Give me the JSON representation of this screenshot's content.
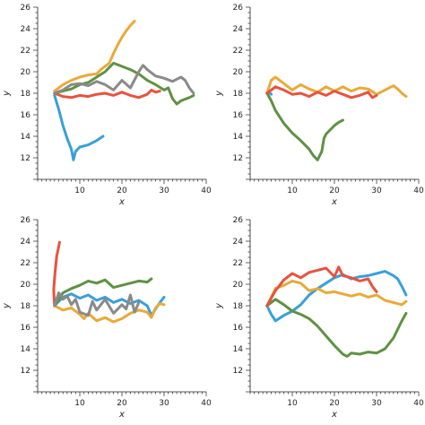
{
  "palette": {
    "blue": "#3a9fd8",
    "orange": "#e8aa38",
    "green": "#5f9144",
    "red": "#e8533f",
    "gray": "#8a8a8a"
  },
  "chart_data": [
    {
      "type": "line",
      "xlabel": "x",
      "ylabel": "y",
      "xlim": [
        0,
        40
      ],
      "ylim": [
        10,
        26
      ],
      "xticks": [
        10,
        20,
        30,
        40
      ],
      "yticks": [
        12,
        14,
        16,
        18,
        20,
        22,
        24,
        26
      ],
      "series": [
        {
          "color": "#3a9fd8",
          "x": [
            4,
            5,
            6,
            7,
            8,
            8.5,
            9,
            10,
            12,
            14,
            15.5
          ],
          "y": [
            17.8,
            16.5,
            15,
            13.8,
            12.8,
            11.8,
            12.6,
            13,
            13.2,
            13.6,
            14
          ]
        },
        {
          "color": "#e8aa38",
          "x": [
            4,
            6,
            8,
            10,
            12,
            14,
            15,
            17,
            18,
            19,
            20,
            21,
            22,
            23
          ],
          "y": [
            18.2,
            18.8,
            19.2,
            19.5,
            19.7,
            19.8,
            20.2,
            20.8,
            21.7,
            22.5,
            23.2,
            23.8,
            24.3,
            24.7
          ]
        },
        {
          "color": "#5f9144",
          "x": [
            4,
            6,
            8,
            10,
            12,
            14,
            16,
            18,
            20,
            22,
            24,
            26,
            28,
            30,
            31,
            32,
            33,
            34,
            36,
            37
          ],
          "y": [
            18,
            18.2,
            18.4,
            18.8,
            19,
            19.5,
            20,
            20.8,
            20.5,
            20.2,
            19.8,
            19.2,
            18.8,
            18.3,
            18.5,
            17.5,
            17,
            17.3,
            17.6,
            17.8
          ]
        },
        {
          "color": "#e8533f",
          "x": [
            4,
            6,
            8,
            10,
            12,
            14,
            16,
            18,
            20,
            22,
            24,
            26,
            27,
            28,
            29
          ],
          "y": [
            18,
            17.7,
            17.6,
            17.8,
            17.7,
            17.9,
            18,
            17.8,
            18.1,
            17.8,
            17.6,
            17.9,
            18.3,
            18.1,
            18.2
          ]
        },
        {
          "color": "#8a8a8a",
          "x": [
            4,
            6,
            8,
            10,
            12,
            14,
            16,
            18,
            20,
            22,
            24,
            25,
            26,
            28,
            30,
            32,
            34,
            35,
            36,
            37
          ],
          "y": [
            18,
            18.3,
            18.8,
            18.9,
            18.7,
            19.1,
            18.8,
            18.3,
            19.2,
            18.5,
            20,
            20.6,
            20.2,
            19.6,
            19.4,
            19.1,
            19.5,
            19.2,
            18.5,
            18
          ]
        }
      ]
    },
    {
      "type": "line",
      "xlabel": "x",
      "ylabel": "y",
      "xlim": [
        0,
        40
      ],
      "ylim": [
        10,
        26
      ],
      "xticks": [
        10,
        20,
        30,
        40
      ],
      "yticks": [
        12,
        14,
        16,
        18,
        20,
        22,
        24,
        26
      ],
      "series": [
        {
          "color": "#3a9fd8",
          "x": [
            4,
            4.5,
            5
          ],
          "y": [
            18,
            18.1,
            17.9
          ]
        },
        {
          "color": "#e8aa38",
          "x": [
            4,
            5,
            6,
            8,
            10,
            12,
            14,
            16,
            18,
            20,
            22,
            24,
            26,
            28,
            30,
            32,
            34,
            35,
            36,
            37
          ],
          "y": [
            18,
            19.2,
            19.5,
            18.9,
            18.3,
            18.8,
            18.4,
            18.1,
            18.6,
            18.2,
            18.6,
            18.2,
            18.5,
            18.4,
            17.9,
            18.3,
            18.7,
            18.4,
            18,
            17.7
          ]
        },
        {
          "color": "#5f9144",
          "x": [
            4,
            5,
            6,
            8,
            10,
            12,
            14,
            15,
            16,
            17,
            17.5,
            18,
            19,
            20,
            21,
            22
          ],
          "y": [
            18,
            17.3,
            16.4,
            15.2,
            14.3,
            13.6,
            12.8,
            12.2,
            11.8,
            12.6,
            13.8,
            14.2,
            14.6,
            15,
            15.3,
            15.5
          ]
        },
        {
          "color": "#e8533f",
          "x": [
            4,
            6,
            8,
            10,
            12,
            14,
            16,
            18,
            20,
            22,
            24,
            26,
            28,
            29,
            30
          ],
          "y": [
            18,
            18.6,
            18.3,
            17.9,
            18,
            17.7,
            18.1,
            17.8,
            18.2,
            17.9,
            17.6,
            17.8,
            18.1,
            17.6,
            17.8
          ]
        }
      ]
    },
    {
      "type": "line",
      "xlabel": "x",
      "ylabel": "y",
      "xlim": [
        0,
        40
      ],
      "ylim": [
        10,
        26
      ],
      "xticks": [
        10,
        20,
        30,
        40
      ],
      "yticks": [
        12,
        14,
        16,
        18,
        20,
        22,
        24,
        26
      ],
      "series": [
        {
          "color": "#3a9fd8",
          "x": [
            4,
            6,
            8,
            10,
            12,
            14,
            16,
            18,
            20,
            22,
            24,
            26,
            27,
            28,
            29,
            30
          ],
          "y": [
            18,
            18.8,
            19.1,
            18.7,
            19,
            18.5,
            18.8,
            18.3,
            18.6,
            18.2,
            18.5,
            18,
            17.1,
            17.7,
            18.3,
            18.8
          ]
        },
        {
          "color": "#e8aa38",
          "x": [
            4,
            6,
            8,
            10,
            11,
            12,
            14,
            16,
            18,
            20,
            22,
            24,
            26,
            27,
            28,
            29,
            30
          ],
          "y": [
            18,
            17.6,
            17.8,
            17.2,
            16.8,
            17.3,
            16.6,
            16.9,
            16.5,
            16.8,
            17.3,
            17.6,
            17.4,
            16.9,
            17.8,
            18.2,
            18.1
          ]
        },
        {
          "color": "#5f9144",
          "x": [
            4,
            6,
            8,
            10,
            12,
            14,
            16,
            18,
            20,
            22,
            24,
            26,
            27
          ],
          "y": [
            18,
            19.2,
            19.6,
            19.9,
            20.3,
            20.1,
            20.4,
            19.7,
            19.9,
            20.1,
            20.3,
            20.2,
            20.5
          ]
        },
        {
          "color": "#e8533f",
          "x": [
            4,
            3.8,
            4.1,
            4.5,
            5,
            5.2
          ],
          "y": [
            18,
            19.5,
            21,
            22.6,
            23.5,
            23.9
          ]
        },
        {
          "color": "#8a8a8a",
          "x": [
            4,
            5,
            6,
            7,
            8,
            9,
            10,
            12,
            13,
            14,
            16,
            18,
            20,
            21,
            22,
            23,
            24
          ],
          "y": [
            18,
            19.2,
            18.6,
            18.9,
            18.1,
            18.6,
            17.4,
            17.1,
            18.4,
            17.6,
            18.6,
            17.3,
            18.1,
            17.7,
            19,
            17.4,
            18.3
          ]
        }
      ]
    },
    {
      "type": "line",
      "xlabel": "x",
      "ylabel": "y",
      "xlim": [
        0,
        40
      ],
      "ylim": [
        10,
        26
      ],
      "xticks": [
        10,
        20,
        30,
        40
      ],
      "yticks": [
        12,
        14,
        16,
        18,
        20,
        22,
        24,
        26
      ],
      "series": [
        {
          "color": "#3a9fd8",
          "x": [
            4,
            5,
            6,
            8,
            10,
            12,
            14,
            16,
            18,
            20,
            22,
            24,
            26,
            28,
            30,
            32,
            34,
            35,
            36,
            37
          ],
          "y": [
            18,
            17.2,
            16.6,
            17.1,
            17.5,
            18.1,
            19,
            19.6,
            20.1,
            20.6,
            20.9,
            20.5,
            20.7,
            20.8,
            21,
            21.2,
            20.8,
            20.5,
            19.8,
            19
          ]
        },
        {
          "color": "#e8aa38",
          "x": [
            4,
            6,
            8,
            10,
            12,
            14,
            16,
            18,
            20,
            22,
            24,
            26,
            28,
            30,
            32,
            34,
            36,
            37
          ],
          "y": [
            18,
            19.6,
            19.9,
            20.3,
            20.1,
            19.4,
            19.6,
            19.2,
            19.3,
            19.1,
            18.9,
            19.1,
            18.8,
            19,
            18.5,
            18.3,
            18.1,
            18.4
          ]
        },
        {
          "color": "#5f9144",
          "x": [
            4,
            6,
            8,
            10,
            12,
            14,
            16,
            18,
            20,
            22,
            23,
            24,
            26,
            28,
            30,
            32,
            34,
            35,
            36,
            37
          ],
          "y": [
            18,
            18.6,
            18.1,
            17.5,
            17.2,
            16.8,
            16.1,
            15.2,
            14.3,
            13.5,
            13.3,
            13.6,
            13.5,
            13.7,
            13.6,
            14,
            15,
            15.8,
            16.6,
            17.3
          ]
        },
        {
          "color": "#e8533f",
          "x": [
            4,
            6,
            8,
            10,
            12,
            14,
            16,
            18,
            20,
            21,
            22,
            24,
            26,
            28,
            29,
            30
          ],
          "y": [
            18,
            19.4,
            20.4,
            21,
            20.6,
            21.1,
            21.3,
            21.5,
            20.7,
            21.6,
            20.8,
            20.6,
            20.3,
            20.5,
            19.8,
            19.3
          ]
        }
      ]
    }
  ]
}
